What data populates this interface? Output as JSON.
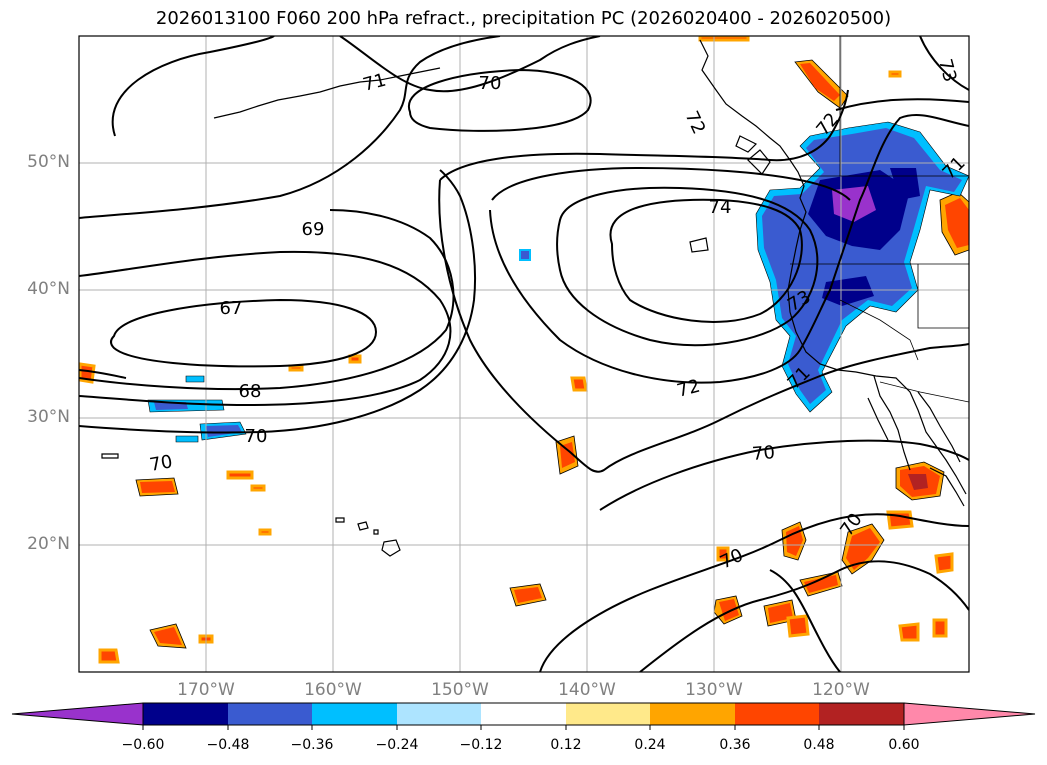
{
  "title": "2026013100 F060 200 hPa refract., precipitation PC (2026020400 - 2026020500)",
  "lat_labels": [
    "50°N",
    "40°N",
    "30°N",
    "20°N"
  ],
  "lon_labels": [
    "170°W",
    "160°W",
    "150°W",
    "140°W",
    "130°W",
    "120°W"
  ],
  "contour_labels": [
    "71",
    "70",
    "72",
    "72",
    "73",
    "71",
    "69",
    "74",
    "67",
    "73",
    "68",
    "72",
    "71",
    "70",
    "70",
    "70",
    "70",
    "70"
  ],
  "colorbar": {
    "ticks": [
      "−0.60",
      "−0.48",
      "−0.36",
      "−0.24",
      "−0.12",
      "0.12",
      "0.24",
      "0.36",
      "0.48",
      "0.60"
    ],
    "colors": [
      "#9932cc",
      "#00008b",
      "#3a5bd0",
      "#00bfff",
      "#ade4ff",
      "#ffffff",
      "#ffe98a",
      "#ffa500",
      "#ff4500",
      "#b22222",
      "#ff88aa"
    ]
  }
}
